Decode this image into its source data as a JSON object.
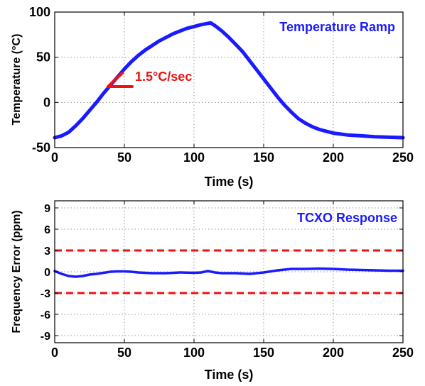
{
  "chart_data": [
    {
      "type": "line",
      "title": "Temperature Ramp",
      "xlabel": "Time (s)",
      "ylabel": "Temperature (°C)",
      "xlim": [
        0,
        250
      ],
      "ylim": [
        -50,
        100
      ],
      "xticks": [
        "0",
        "50",
        "100",
        "150",
        "200",
        "250"
      ],
      "yticks": [
        "-50",
        "0",
        "50",
        "100"
      ],
      "grid": true,
      "series": [
        {
          "color": "#1a1aff",
          "x": [
            0,
            5,
            10,
            15,
            20,
            25,
            30,
            35,
            40,
            45,
            50,
            55,
            60,
            65,
            70,
            75,
            80,
            85,
            90,
            95,
            100,
            105,
            110,
            112,
            115,
            120,
            125,
            130,
            135,
            140,
            145,
            150,
            155,
            160,
            165,
            170,
            175,
            180,
            185,
            190,
            195,
            200,
            205,
            210,
            220,
            230,
            240,
            250
          ],
          "y": [
            -39,
            -37,
            -33,
            -26,
            -18,
            -9,
            0,
            10,
            19,
            28,
            37,
            45,
            52,
            58,
            63,
            68,
            72,
            76,
            79,
            82,
            84,
            86,
            87.5,
            88,
            85,
            79,
            72,
            64,
            56,
            46,
            36,
            26,
            16,
            6,
            -3,
            -11,
            -18,
            -23,
            -27,
            -30,
            -32,
            -34,
            -35,
            -36,
            -37,
            -38,
            -38.5,
            -39
          ]
        }
      ],
      "annotations": [
        {
          "text": "1.5°C/sec",
          "color": "#ee1111"
        }
      ]
    },
    {
      "type": "line",
      "title": "TCXO Response",
      "xlabel": "Time (s)",
      "ylabel": "Frequency Error (ppm)",
      "xlim": [
        0,
        250
      ],
      "ylim": [
        -10,
        10
      ],
      "xticks": [
        "0",
        "50",
        "100",
        "150",
        "200",
        "250"
      ],
      "yticks": [
        "9",
        "6",
        "3",
        "0",
        "-3",
        "-6",
        "-9"
      ],
      "grid": true,
      "series": [
        {
          "color": "#1a1aff",
          "x": [
            0,
            5,
            10,
            15,
            20,
            25,
            30,
            35,
            40,
            45,
            50,
            55,
            60,
            70,
            80,
            90,
            100,
            105,
            110,
            115,
            120,
            130,
            140,
            150,
            160,
            170,
            180,
            190,
            200,
            210,
            220,
            230,
            240,
            250
          ],
          "y": [
            0.1,
            -0.3,
            -0.6,
            -0.7,
            -0.6,
            -0.4,
            -0.3,
            -0.15,
            0,
            0.05,
            0.05,
            0,
            -0.1,
            -0.2,
            -0.2,
            -0.1,
            -0.15,
            -0.1,
            0.1,
            -0.1,
            -0.2,
            -0.2,
            -0.3,
            -0.1,
            0.2,
            0.4,
            0.4,
            0.45,
            0.4,
            0.3,
            0.25,
            0.2,
            0.15,
            0.15
          ]
        }
      ],
      "limits": [
        3,
        -3
      ],
      "limit_color": "#ee1111"
    }
  ],
  "icons": {
    "slope-marker": "red angle mark"
  }
}
